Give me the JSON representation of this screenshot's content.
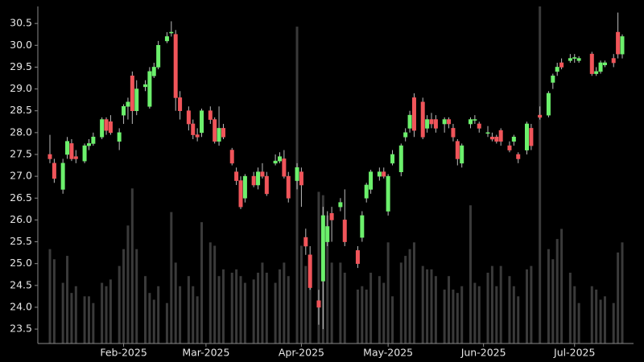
{
  "chart_data": {
    "type": "candlestick",
    "categories": [
      null,
      null,
      null,
      null,
      null,
      null,
      null,
      null,
      null,
      null,
      null,
      null,
      null,
      null,
      null,
      null,
      null,
      "Feb-2025",
      null,
      null,
      null,
      null,
      null,
      null,
      null,
      null,
      null,
      null,
      null,
      null,
      null,
      null,
      null,
      null,
      null,
      null,
      "Mar-2025",
      null,
      null,
      null,
      null,
      null,
      null,
      null,
      null,
      null,
      null,
      null,
      null,
      null,
      null,
      null,
      null,
      null,
      null,
      null,
      null,
      null,
      "Apr-2025",
      null,
      null,
      null,
      null,
      null,
      null,
      null,
      null,
      null,
      null,
      null,
      null,
      null,
      null,
      null,
      null,
      null,
      null,
      null,
      "May-2025",
      null,
      null,
      null,
      null,
      null,
      null,
      null,
      null,
      null,
      null,
      null,
      null,
      null,
      null,
      null,
      null,
      null,
      null,
      null,
      null,
      null,
      "Jun-2025",
      null,
      null,
      null,
      null,
      null,
      null,
      null,
      null,
      null,
      null,
      null,
      null,
      null,
      null,
      null,
      null,
      null,
      null,
      null,
      null,
      "Jul-2025",
      null,
      null,
      null,
      null,
      null,
      null,
      null,
      null,
      null,
      null,
      null
    ],
    "candles": [
      [
        27.5,
        27.95,
        27.3,
        27.4
      ],
      [
        27.3,
        27.4,
        26.85,
        26.95
      ],
      null,
      [
        26.7,
        27.4,
        26.6,
        27.3
      ],
      [
        27.5,
        27.9,
        27.4,
        27.8
      ],
      [
        27.75,
        27.85,
        27.35,
        27.4
      ],
      [
        27.45,
        27.6,
        27.3,
        27.4
      ],
      null,
      [
        27.35,
        27.75,
        27.3,
        27.7
      ],
      [
        27.7,
        27.85,
        27.6,
        27.75
      ],
      [
        27.75,
        28.0,
        27.7,
        27.9
      ],
      null,
      [
        27.9,
        28.35,
        27.85,
        28.3
      ],
      [
        28.3,
        28.35,
        27.95,
        28.05
      ],
      [
        28.25,
        28.4,
        27.95,
        28.0
      ],
      null,
      [
        27.8,
        28.1,
        27.6,
        28.0
      ],
      [
        28.4,
        28.65,
        28.2,
        28.6
      ],
      [
        28.6,
        28.8,
        28.3,
        28.7
      ],
      [
        29.3,
        29.4,
        28.2,
        28.5
      ],
      [
        28.5,
        29.2,
        28.4,
        29.0
      ],
      null,
      [
        29.05,
        29.2,
        28.95,
        29.1
      ],
      [
        28.6,
        29.5,
        28.55,
        29.4
      ],
      [
        29.3,
        29.6,
        29.25,
        29.5
      ],
      [
        29.5,
        30.1,
        29.45,
        30.0
      ],
      null,
      [
        30.1,
        30.3,
        30.05,
        30.2
      ],
      [
        30.3,
        30.55,
        30.2,
        30.3
      ],
      [
        30.25,
        30.35,
        28.5,
        28.8
      ],
      [
        28.8,
        28.95,
        28.3,
        28.5
      ],
      null,
      [
        28.5,
        28.6,
        28.05,
        28.2
      ],
      [
        28.2,
        28.3,
        27.85,
        27.95
      ],
      [
        27.95,
        28.1,
        27.8,
        27.9
      ],
      [
        28.0,
        28.55,
        27.9,
        28.5
      ],
      null,
      [
        28.5,
        28.6,
        28.2,
        28.3
      ],
      [
        28.3,
        28.35,
        27.75,
        27.8
      ],
      [
        27.8,
        28.6,
        27.7,
        28.1
      ],
      [
        28.1,
        28.2,
        27.85,
        27.9
      ],
      null,
      [
        27.6,
        27.65,
        27.25,
        27.3
      ],
      [
        27.1,
        27.2,
        26.8,
        26.9
      ],
      [
        26.9,
        27.0,
        26.25,
        26.3
      ],
      [
        26.5,
        27.05,
        26.4,
        27.0
      ],
      null,
      [
        27.0,
        27.1,
        26.75,
        26.8
      ],
      [
        26.8,
        27.2,
        26.7,
        27.1
      ],
      [
        27.1,
        27.3,
        26.95,
        27.0
      ],
      [
        27.0,
        27.1,
        26.55,
        26.6
      ],
      null,
      [
        27.3,
        27.5,
        27.25,
        27.35
      ],
      [
        27.35,
        27.55,
        27.3,
        27.45
      ],
      [
        27.4,
        27.6,
        26.95,
        27.0
      ],
      [
        27.0,
        27.1,
        26.4,
        26.5
      ],
      null,
      [
        26.9,
        27.3,
        26.7,
        27.2
      ],
      [
        27.1,
        27.2,
        26.3,
        26.8
      ],
      [
        25.6,
        25.8,
        25.2,
        25.4
      ],
      [
        25.2,
        25.4,
        24.4,
        24.45
      ],
      null,
      [
        24.15,
        24.4,
        23.6,
        24.0
      ],
      [
        24.6,
        26.3,
        23.5,
        26.1
      ],
      [
        25.5,
        26.2,
        25.4,
        25.85
      ],
      [
        26.15,
        26.3,
        25.5,
        26.0
      ],
      null,
      [
        26.3,
        26.5,
        26.2,
        26.4
      ],
      [
        26.0,
        26.7,
        25.4,
        25.5
      ],
      null,
      null,
      [
        25.3,
        25.4,
        24.9,
        25.0
      ],
      [
        25.6,
        26.2,
        25.5,
        26.1
      ],
      [
        26.5,
        26.85,
        26.4,
        26.8
      ],
      [
        26.7,
        27.15,
        26.6,
        27.1
      ],
      null,
      [
        27.0,
        27.2,
        26.9,
        27.1
      ],
      [
        27.1,
        27.2,
        26.95,
        27.0
      ],
      [
        26.2,
        27.05,
        26.1,
        27.0
      ],
      [
        27.3,
        27.6,
        27.25,
        27.5
      ],
      null,
      [
        27.1,
        27.75,
        27.0,
        27.7
      ],
      [
        27.9,
        28.1,
        27.8,
        28.0
      ],
      [
        28.1,
        28.5,
        28.0,
        28.4
      ],
      [
        28.8,
        28.9,
        27.9,
        28.05
      ],
      null,
      [
        28.7,
        28.8,
        27.85,
        27.9
      ],
      [
        28.1,
        28.4,
        28.0,
        28.3
      ],
      [
        28.3,
        28.45,
        28.1,
        28.2
      ],
      [
        28.3,
        28.4,
        28.0,
        28.1
      ],
      null,
      [
        28.2,
        28.35,
        28.0,
        28.3
      ],
      [
        28.3,
        28.35,
        28.1,
        28.2
      ],
      [
        28.1,
        28.2,
        27.8,
        27.9
      ],
      [
        27.8,
        27.85,
        27.25,
        27.4
      ],
      [
        27.3,
        27.75,
        27.2,
        27.7
      ],
      null,
      [
        28.2,
        28.35,
        28.1,
        28.3
      ],
      [
        28.3,
        28.4,
        28.2,
        28.3
      ],
      [
        28.2,
        28.25,
        28.0,
        28.1
      ],
      null,
      [
        28.0,
        28.15,
        27.9,
        28.0
      ],
      [
        27.9,
        28.0,
        27.8,
        27.85
      ],
      [
        27.9,
        27.95,
        27.75,
        27.8
      ],
      [
        28.05,
        28.1,
        27.7,
        27.8
      ],
      null,
      [
        27.7,
        27.8,
        27.55,
        27.6
      ],
      [
        27.8,
        27.95,
        27.7,
        27.9
      ],
      [
        27.5,
        27.55,
        27.3,
        27.4
      ],
      null,
      [
        27.6,
        28.25,
        27.5,
        28.2
      ],
      [
        28.1,
        28.2,
        27.6,
        27.7
      ],
      null,
      [
        28.4,
        28.6,
        28.3,
        28.35
      ],
      null,
      [
        28.4,
        28.95,
        28.35,
        28.9
      ],
      [
        29.15,
        29.35,
        29.0,
        29.3
      ],
      [
        29.4,
        29.6,
        29.3,
        29.5
      ],
      [
        29.6,
        29.7,
        29.45,
        29.5
      ],
      null,
      [
        29.65,
        29.8,
        29.6,
        29.7
      ],
      [
        29.7,
        29.8,
        29.6,
        29.72
      ],
      [
        29.65,
        29.75,
        29.6,
        29.7
      ],
      null,
      null,
      [
        29.8,
        29.85,
        29.3,
        29.35
      ],
      [
        29.35,
        29.5,
        29.3,
        29.4
      ],
      [
        29.4,
        29.65,
        29.35,
        29.6
      ],
      [
        29.55,
        29.65,
        29.5,
        29.6
      ],
      null,
      [
        29.7,
        29.8,
        29.5,
        29.6
      ],
      [
        30.3,
        30.75,
        29.7,
        29.8
      ],
      [
        29.8,
        30.25,
        29.7,
        30.2
      ]
    ],
    "volume": {
      "axis": "y2",
      "color": "#3a3a3a",
      "values": [
        28,
        25,
        null,
        18,
        26,
        15,
        17,
        null,
        14,
        14,
        12,
        null,
        18,
        17,
        19,
        null,
        23,
        28,
        35,
        46,
        28,
        null,
        20,
        15,
        13,
        17,
        null,
        12,
        39,
        24,
        17,
        null,
        20,
        17,
        14,
        36,
        null,
        30,
        29,
        20,
        22,
        null,
        21,
        22,
        20,
        18,
        null,
        19,
        21,
        24,
        21,
        null,
        18,
        22,
        24,
        20,
        null,
        94,
        29,
        23,
        19,
        null,
        45,
        44,
        38,
        24,
        null,
        24,
        21,
        null,
        null,
        16,
        17,
        16,
        21,
        null,
        20,
        18,
        30,
        14,
        null,
        24,
        26,
        28,
        30,
        null,
        23,
        22,
        22,
        20,
        null,
        16,
        20,
        16,
        15,
        17,
        null,
        41,
        18,
        17,
        null,
        21,
        23,
        17,
        23,
        null,
        20,
        17,
        14,
        null,
        22,
        23,
        null,
        100,
        null,
        28,
        25,
        31,
        34,
        null,
        21,
        17,
        12,
        null,
        null,
        17,
        16,
        13,
        14,
        null,
        12,
        27,
        30
      ]
    },
    "up_color": "#6cf06c",
    "down_color": "#f0555a",
    "wick_color": "#bdbdbd",
    "ylim": [
      23.17,
      30.89
    ],
    "yticks": [
      23.5,
      {
        "value": 24,
        "label": "24.0"
      },
      24.5,
      {
        "value": 25,
        "label": "25.0"
      },
      25.5,
      {
        "value": 26,
        "label": "26.0"
      },
      26.5,
      {
        "value": 27,
        "label": "27.0"
      },
      27.5,
      {
        "value": 28,
        "label": "28.0"
      },
      28.5,
      {
        "value": 29,
        "label": "29.0"
      },
      29.5,
      {
        "value": 30,
        "label": "30.0"
      },
      30.5
    ],
    "y2lim": [
      0,
      100
    ],
    "grid": false
  }
}
